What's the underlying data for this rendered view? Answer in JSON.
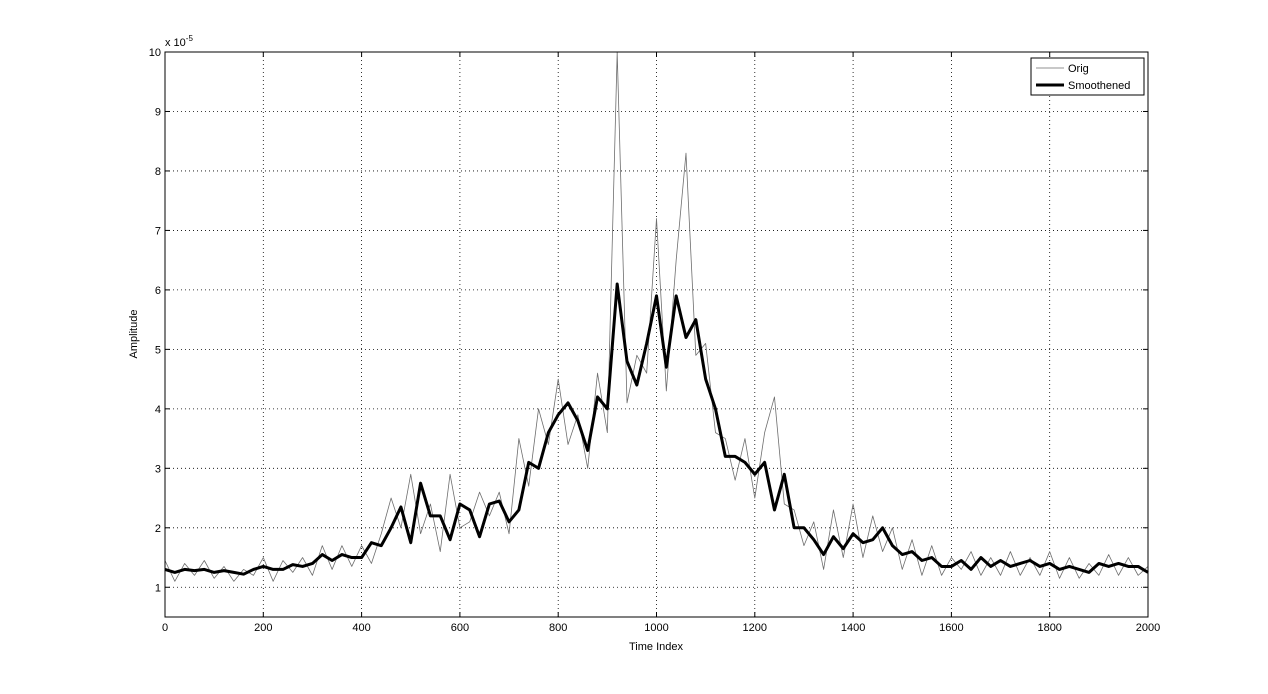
{
  "chart_data": {
    "type": "line",
    "xlabel": "Time Index",
    "ylabel": "Amplitude",
    "y_multiplier": "x 10",
    "y_multiplier_exponent": "-5",
    "xlim": [
      0,
      2000
    ],
    "ylim": [
      0.5,
      10
    ],
    "xticks": [
      0,
      200,
      400,
      600,
      800,
      1000,
      1200,
      1400,
      1600,
      1800,
      2000
    ],
    "yticks": [
      1,
      2,
      3,
      4,
      5,
      6,
      7,
      8,
      9,
      10
    ],
    "grid": true,
    "legend": "upper-right",
    "x": [
      0,
      20,
      40,
      60,
      80,
      100,
      120,
      140,
      160,
      180,
      200,
      220,
      240,
      260,
      280,
      300,
      320,
      340,
      360,
      380,
      400,
      420,
      440,
      460,
      480,
      500,
      520,
      540,
      560,
      580,
      600,
      620,
      640,
      660,
      680,
      700,
      720,
      740,
      760,
      780,
      800,
      820,
      840,
      860,
      880,
      900,
      920,
      940,
      960,
      980,
      1000,
      1020,
      1040,
      1060,
      1080,
      1100,
      1120,
      1140,
      1160,
      1180,
      1200,
      1220,
      1240,
      1260,
      1280,
      1300,
      1320,
      1340,
      1360,
      1380,
      1400,
      1420,
      1440,
      1460,
      1480,
      1500,
      1520,
      1540,
      1560,
      1580,
      1600,
      1620,
      1640,
      1660,
      1680,
      1700,
      1720,
      1740,
      1760,
      1780,
      1800,
      1820,
      1840,
      1860,
      1880,
      1900,
      1920,
      1940,
      1960,
      1980,
      2000
    ],
    "series": [
      {
        "name": "Orig",
        "color": "#6e6e6e",
        "width": 0.8,
        "values": [
          1.45,
          1.1,
          1.4,
          1.2,
          1.45,
          1.15,
          1.35,
          1.1,
          1.3,
          1.2,
          1.5,
          1.1,
          1.45,
          1.25,
          1.5,
          1.2,
          1.7,
          1.3,
          1.7,
          1.35,
          1.7,
          1.4,
          1.9,
          2.5,
          2.0,
          2.9,
          1.9,
          2.4,
          1.6,
          2.9,
          2.0,
          2.1,
          2.6,
          2.2,
          2.6,
          1.9,
          3.5,
          2.7,
          4.0,
          3.4,
          4.5,
          3.4,
          3.9,
          3.0,
          4.6,
          3.6,
          10.0,
          4.1,
          4.9,
          4.6,
          7.2,
          4.3,
          6.5,
          8.3,
          4.9,
          5.1,
          3.6,
          3.5,
          2.8,
          3.5,
          2.5,
          3.6,
          4.2,
          2.4,
          2.3,
          1.7,
          2.1,
          1.3,
          2.3,
          1.5,
          2.4,
          1.5,
          2.2,
          1.6,
          2.0,
          1.3,
          1.8,
          1.2,
          1.7,
          1.2,
          1.5,
          1.3,
          1.6,
          1.2,
          1.5,
          1.2,
          1.6,
          1.2,
          1.5,
          1.2,
          1.6,
          1.15,
          1.5,
          1.15,
          1.4,
          1.2,
          1.55,
          1.2,
          1.5,
          1.2,
          1.35
        ]
      },
      {
        "name": "Smoothened",
        "color": "#000000",
        "width": 3,
        "values": [
          1.3,
          1.25,
          1.3,
          1.28,
          1.3,
          1.25,
          1.28,
          1.25,
          1.22,
          1.3,
          1.35,
          1.3,
          1.3,
          1.38,
          1.35,
          1.4,
          1.55,
          1.45,
          1.55,
          1.5,
          1.5,
          1.75,
          1.7,
          2.0,
          2.35,
          1.75,
          2.75,
          2.2,
          2.2,
          1.8,
          2.4,
          2.3,
          1.85,
          2.4,
          2.45,
          2.1,
          2.3,
          3.1,
          3.0,
          3.6,
          3.9,
          4.1,
          3.8,
          3.3,
          4.2,
          4.0,
          6.1,
          4.8,
          4.4,
          5.1,
          5.9,
          4.7,
          5.9,
          5.2,
          5.5,
          4.5,
          4.0,
          3.2,
          3.2,
          3.1,
          2.9,
          3.1,
          2.3,
          2.9,
          2.0,
          2.0,
          1.8,
          1.55,
          1.85,
          1.65,
          1.9,
          1.75,
          1.8,
          2.0,
          1.7,
          1.55,
          1.6,
          1.45,
          1.5,
          1.35,
          1.35,
          1.45,
          1.3,
          1.5,
          1.35,
          1.45,
          1.35,
          1.4,
          1.45,
          1.35,
          1.4,
          1.3,
          1.35,
          1.3,
          1.25,
          1.4,
          1.35,
          1.4,
          1.35,
          1.35,
          1.25
        ]
      }
    ]
  }
}
